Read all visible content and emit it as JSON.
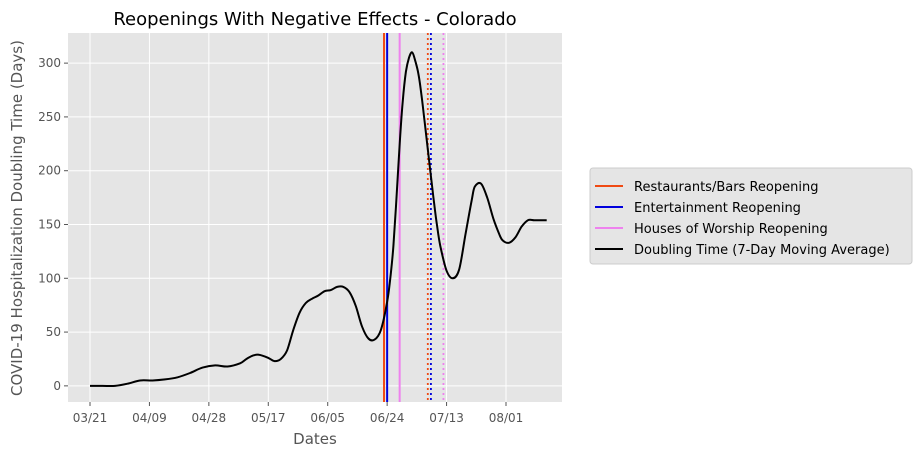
{
  "chart_data": {
    "type": "line",
    "title": "Reopenings With Negative Effects - Colorado",
    "xlabel": "Dates",
    "ylabel": "COVID-19 Hospitalization Doubling Time (Days)",
    "x_ticks": [
      "03/21",
      "04/09",
      "04/28",
      "05/17",
      "06/05",
      "06/24",
      "07/13",
      "08/01"
    ],
    "y_ticks": [
      0,
      50,
      100,
      150,
      200,
      250,
      300
    ],
    "ylim": [
      -15,
      328
    ],
    "grid": true,
    "legend_position": "right",
    "series": [
      {
        "name": "Doubling Time (7-Day Moving Average)",
        "color": "#000000",
        "x": [
          "03/21",
          "03/25",
          "03/29",
          "04/02",
          "04/06",
          "04/10",
          "04/14",
          "04/18",
          "04/22",
          "04/26",
          "04/30",
          "05/04",
          "05/08",
          "05/10",
          "05/12",
          "05/14",
          "05/17",
          "05/19",
          "05/21",
          "05/23",
          "05/25",
          "05/27",
          "05/29",
          "05/31",
          "06/02",
          "06/04",
          "06/06",
          "06/08",
          "06/10",
          "06/12",
          "06/14",
          "06/16",
          "06/18",
          "06/20",
          "06/22",
          "06/24",
          "06/25",
          "06/26",
          "06/27",
          "06/28",
          "06/29",
          "06/30",
          "07/01",
          "07/02",
          "07/03",
          "07/04",
          "07/05",
          "07/06",
          "07/07",
          "07/08",
          "07/09",
          "07/10",
          "07/11",
          "07/13",
          "07/15",
          "07/17",
          "07/19",
          "07/21",
          "07/22",
          "07/24",
          "07/26",
          "07/28",
          "07/30",
          "07/31",
          "08/02",
          "08/04",
          "08/06",
          "08/08",
          "08/10",
          "08/12",
          "08/14"
        ],
        "values": [
          0,
          0,
          0,
          2,
          5,
          5,
          6,
          8,
          12,
          17,
          19,
          18,
          21,
          25,
          28,
          29,
          26,
          23,
          25,
          33,
          52,
          68,
          77,
          81,
          84,
          88,
          89,
          92,
          92,
          87,
          74,
          55,
          44,
          43,
          52,
          78,
          100,
          130,
          175,
          225,
          265,
          292,
          305,
          310,
          302,
          290,
          270,
          245,
          220,
          195,
          170,
          148,
          130,
          107,
          100,
          108,
          140,
          172,
          185,
          188,
          175,
          155,
          140,
          135,
          133,
          138,
          148,
          154,
          154,
          154,
          154
        ]
      }
    ],
    "reference_lines": [
      {
        "name": "Restaurants/Bars Reopening",
        "color": "#f04a13",
        "style": "solid",
        "x": "06/23"
      },
      {
        "name": "Entertainment Reopening",
        "color": "#0000dd",
        "style": "solid",
        "x": "06/24"
      },
      {
        "name": "Houses of Worship Reopening",
        "color": "#ee82ee",
        "style": "solid",
        "x": "06/28"
      },
      {
        "color": "#f04a13",
        "style": "dotted",
        "x": "07/07"
      },
      {
        "color": "#0000dd",
        "style": "dotted",
        "x": "07/08"
      },
      {
        "color": "#ee82ee",
        "style": "dotted",
        "x": "07/12"
      }
    ],
    "legend": [
      {
        "label": "Restaurants/Bars Reopening",
        "color": "#f04a13"
      },
      {
        "label": "Entertainment Reopening",
        "color": "#0000dd"
      },
      {
        "label": "Houses of Worship Reopening",
        "color": "#ee82ee"
      },
      {
        "label": "Doubling Time (7-Day Moving Average)",
        "color": "#000000"
      }
    ]
  }
}
